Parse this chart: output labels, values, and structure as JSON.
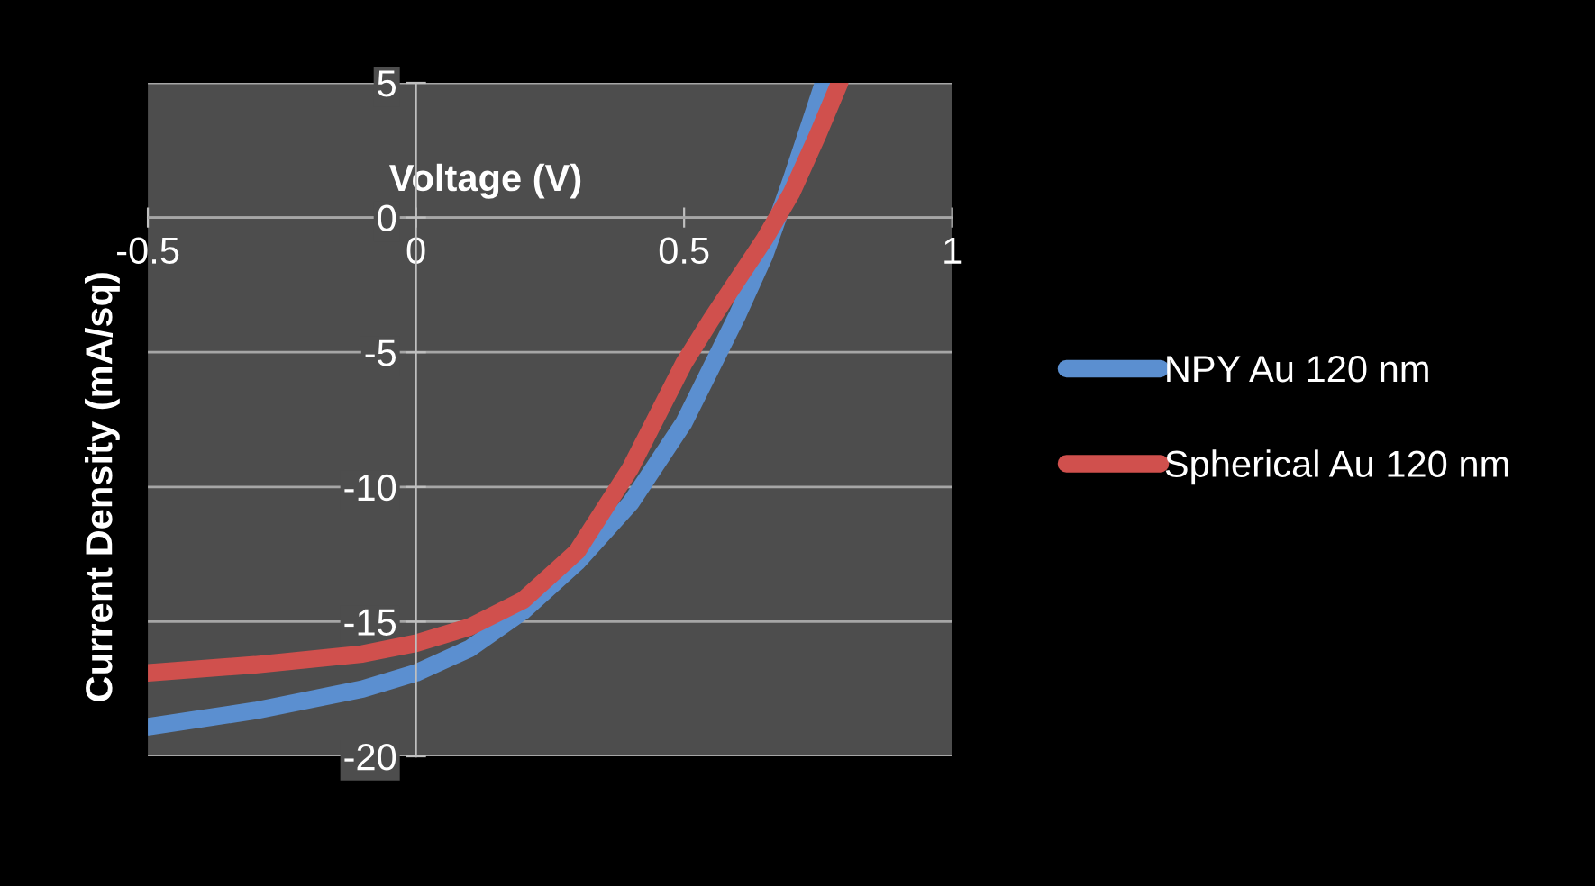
{
  "chart_data": {
    "type": "line",
    "xlabel": "Voltage (V)",
    "ylabel": "Current Density (mA/sq)",
    "xlim": [
      -0.5,
      1
    ],
    "ylim": [
      -20,
      5
    ],
    "xticks": [
      -0.5,
      0,
      0.5,
      1
    ],
    "yticks": [
      -20,
      -15,
      -10,
      -5,
      0,
      5
    ],
    "grid": "y",
    "legend": "right",
    "marker": "none",
    "line_style": "solid",
    "series": [
      {
        "name": "NPY Au 120 nm",
        "color": "#5b8fd0",
        "x": [
          -0.5,
          -0.4,
          -0.3,
          -0.2,
          -0.1,
          0,
          0.1,
          0.2,
          0.3,
          0.4,
          0.5,
          0.55,
          0.6,
          0.65,
          0.7,
          0.76
        ],
        "values": [
          -18.9,
          -18.6,
          -18.3,
          -17.9,
          -17.5,
          -16.9,
          -16,
          -14.6,
          -12.8,
          -10.6,
          -7.6,
          -5.6,
          -3.6,
          -1.4,
          1.4,
          5
        ]
      },
      {
        "name": "Spherical Au 120 nm",
        "color": "#d0504d",
        "x": [
          -0.5,
          -0.3,
          -0.1,
          0,
          0.1,
          0.2,
          0.3,
          0.4,
          0.5,
          0.55,
          0.6,
          0.65,
          0.7,
          0.75,
          0.79
        ],
        "values": [
          -16.9,
          -16.6,
          -16.2,
          -15.8,
          -15.2,
          -14.2,
          -12.4,
          -9.3,
          -5.4,
          -3.8,
          -2.3,
          -0.8,
          0.9,
          3.1,
          5
        ]
      }
    ]
  }
}
